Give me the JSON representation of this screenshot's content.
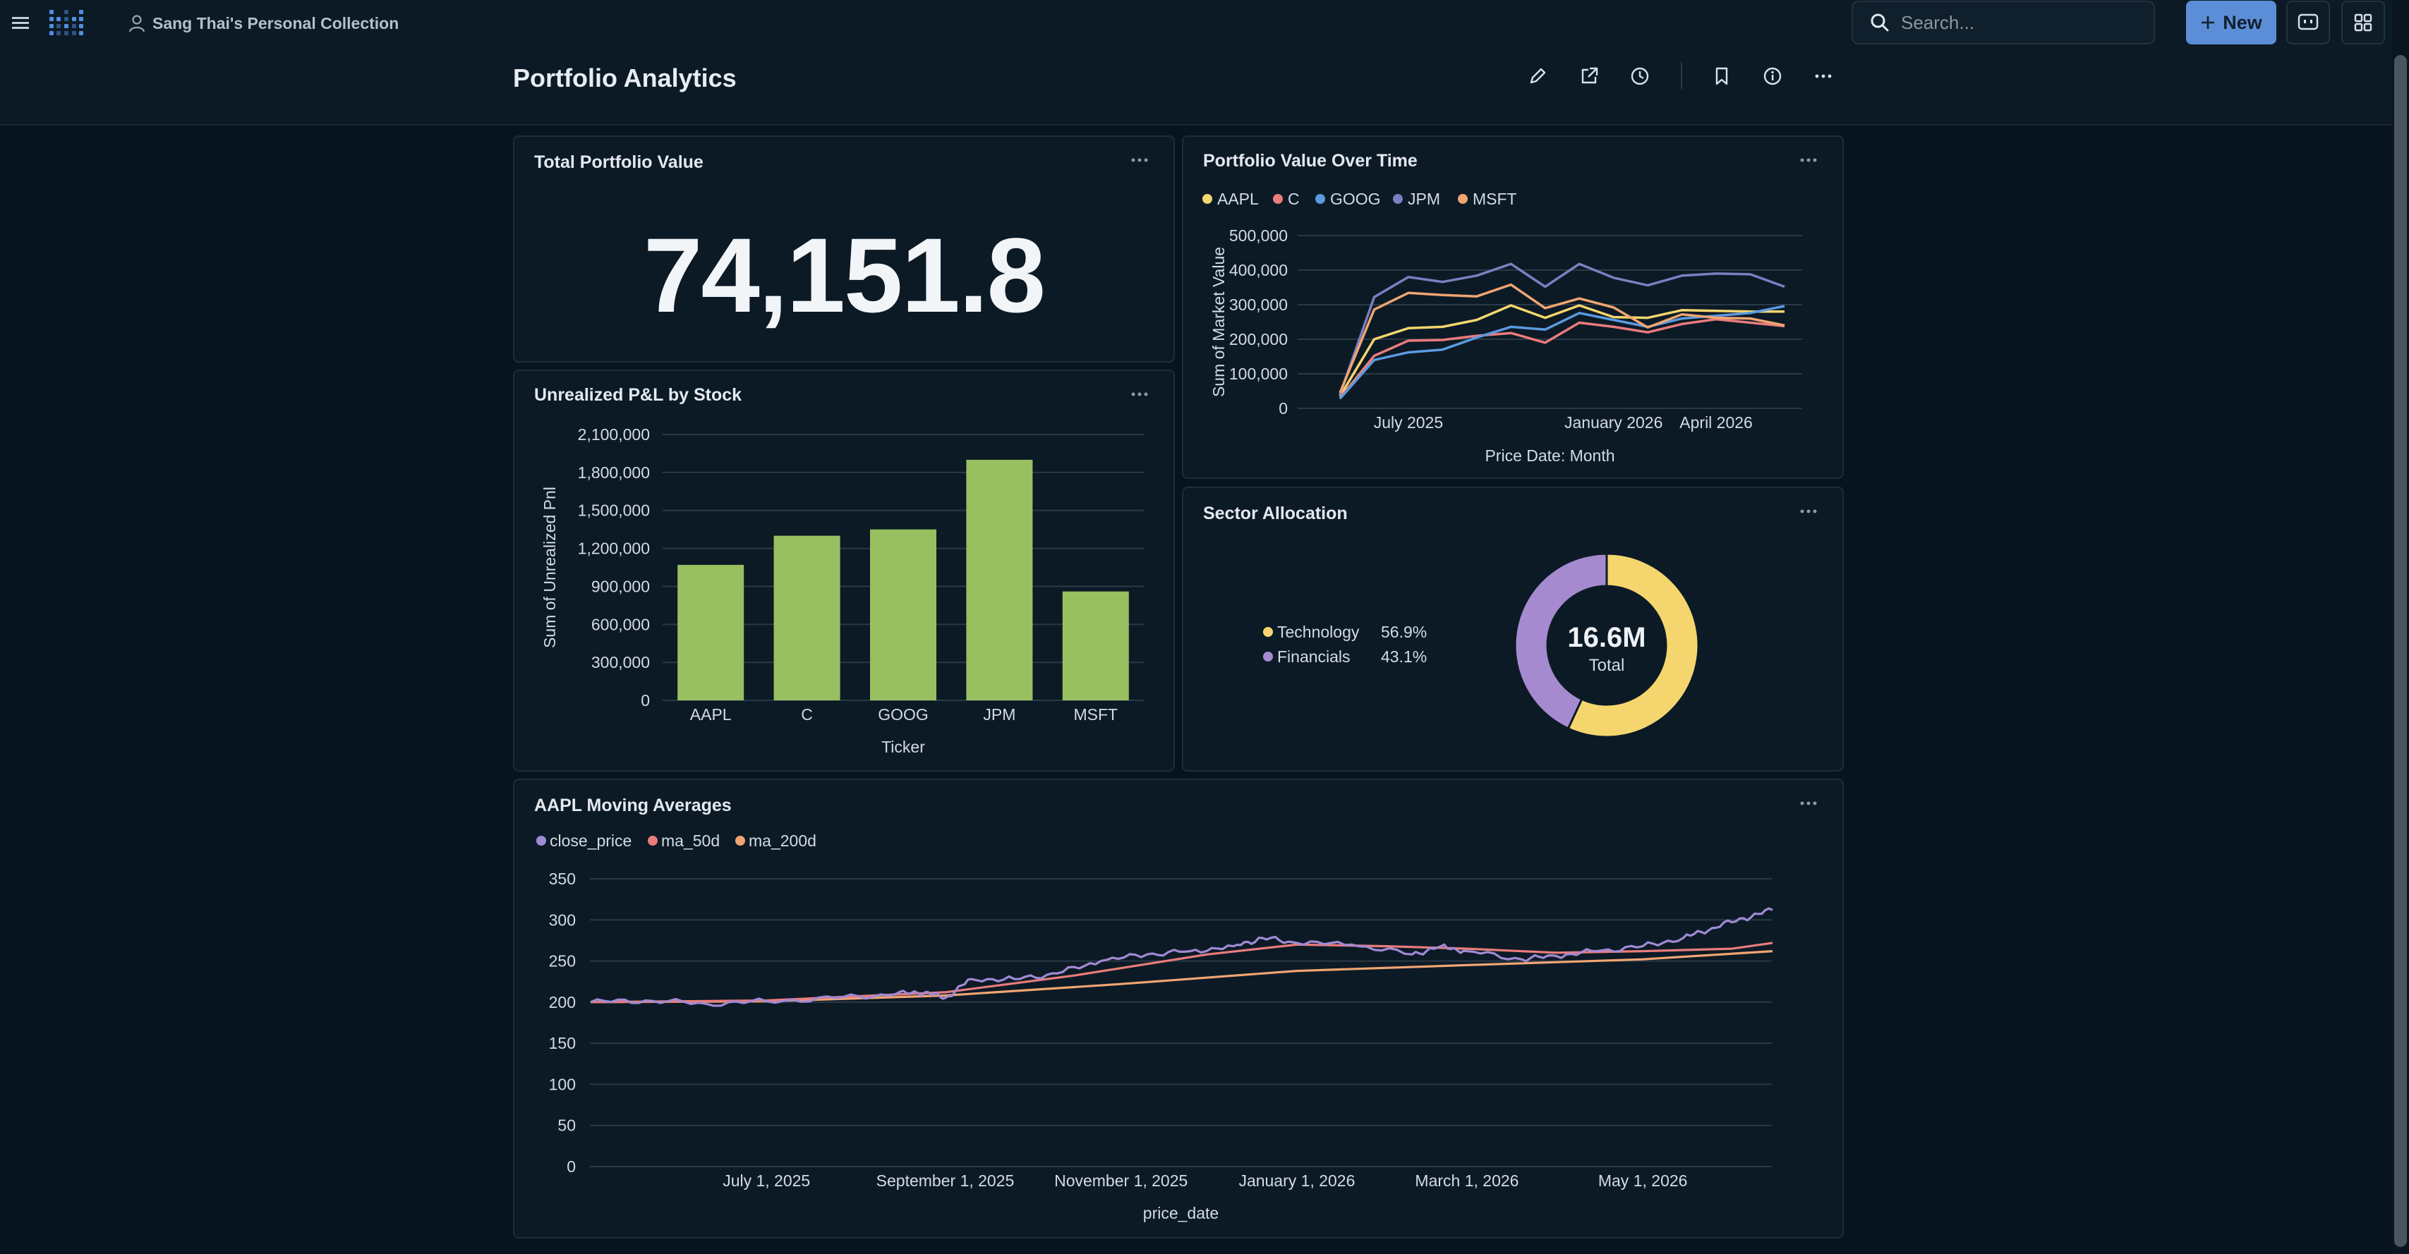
{
  "navbar": {
    "collection": "Sang Thai's Personal Collection",
    "search_placeholder": "Search...",
    "new_label": "New"
  },
  "dashboard": {
    "title": "Portfolio Analytics"
  },
  "colors": {
    "aapl": "#f5d66e",
    "c": "#ea7c7c",
    "goog": "#5b9ae0",
    "jpm": "#7b7fc1",
    "msft": "#f0a572",
    "bar": "#98c060",
    "technology": "#f5d66e",
    "financials": "#a68ad0",
    "close_price": "#a08ad4",
    "ma_50d": "#ea7c7c",
    "ma_200d": "#f0a572"
  },
  "cards": {
    "total": {
      "title": "Total Portfolio Value",
      "value": "74,151.8"
    },
    "pvot": {
      "title": "Portfolio Value Over Time"
    },
    "pnl": {
      "title": "Unrealized P&L by Stock"
    },
    "sector": {
      "title": "Sector Allocation"
    },
    "ma": {
      "title": "AAPL Moving Averages"
    }
  },
  "chart_data": [
    {
      "id": "pvot",
      "type": "line",
      "title": "Portfolio Value Over Time",
      "xlabel": "Price Date: Month",
      "ylabel": "Sum of Market Value",
      "ylim": [
        0,
        500000
      ],
      "yticks": [
        0,
        100000,
        200000,
        300000,
        400000,
        500000
      ],
      "ytick_labels": [
        "0",
        "100,000",
        "200,000",
        "300,000",
        "400,000",
        "500,000"
      ],
      "xtick_labels": [
        "July 2025",
        "January 2026",
        "April 2026"
      ],
      "xtick_index": [
        2,
        8,
        11
      ],
      "legend": "top-left",
      "x": [
        "2025-05",
        "2025-06",
        "2025-07",
        "2025-08",
        "2025-09",
        "2025-10",
        "2025-11",
        "2025-12",
        "2026-01",
        "2026-02",
        "2026-03",
        "2026-04",
        "2026-05",
        "2026-06"
      ],
      "series": [
        {
          "name": "AAPL",
          "values": [
            35000,
            200000,
            232000,
            236000,
            256000,
            298000,
            262000,
            298000,
            264000,
            262000,
            284000,
            282000,
            280000,
            280000
          ]
        },
        {
          "name": "C",
          "values": [
            30000,
            152000,
            196000,
            198000,
            210000,
            218000,
            190000,
            248000,
            236000,
            220000,
            244000,
            258000,
            248000,
            238000
          ]
        },
        {
          "name": "GOOG",
          "values": [
            28000,
            140000,
            162000,
            170000,
            205000,
            236000,
            228000,
            276000,
            256000,
            236000,
            260000,
            268000,
            276000,
            296000
          ]
        },
        {
          "name": "JPM",
          "values": [
            40000,
            322000,
            380000,
            366000,
            384000,
            418000,
            352000,
            418000,
            378000,
            356000,
            384000,
            390000,
            388000,
            352000
          ]
        },
        {
          "name": "MSFT",
          "values": [
            45000,
            286000,
            334000,
            328000,
            324000,
            358000,
            290000,
            318000,
            292000,
            234000,
            272000,
            262000,
            260000,
            240000
          ]
        }
      ]
    },
    {
      "id": "pnl",
      "type": "bar",
      "title": "Unrealized P&L by Stock",
      "xlabel": "Ticker",
      "ylabel": "Sum of Unrealized Pnl",
      "ylim": [
        0,
        2100000
      ],
      "yticks": [
        0,
        300000,
        600000,
        900000,
        1200000,
        1500000,
        1800000,
        2100000
      ],
      "ytick_labels": [
        "0",
        "300,000",
        "600,000",
        "900,000",
        "1,200,000",
        "1,500,000",
        "1,800,000",
        "2,100,000"
      ],
      "categories": [
        "AAPL",
        "C",
        "GOOG",
        "JPM",
        "MSFT"
      ],
      "values": [
        1070000,
        1300000,
        1350000,
        1900000,
        860000
      ]
    },
    {
      "id": "sector",
      "type": "pie",
      "title": "Sector Allocation",
      "center_value": "16.6M",
      "center_label": "Total",
      "legend": "left",
      "slices": [
        {
          "name": "Technology",
          "value": 56.9,
          "label": "56.9%"
        },
        {
          "name": "Financials",
          "value": 43.1,
          "label": "43.1%"
        }
      ]
    },
    {
      "id": "ma",
      "type": "line",
      "title": "AAPL Moving Averages",
      "xlabel": "price_date",
      "ylabel": "",
      "ylim": [
        0,
        350
      ],
      "yticks": [
        0,
        50,
        100,
        150,
        200,
        250,
        300,
        350
      ],
      "x_start": "2025-05-01",
      "x_end": "2026-06-15",
      "xtick_dates": [
        "2025-07-01",
        "2025-09-01",
        "2025-11-01",
        "2026-01-01",
        "2026-03-01",
        "2026-05-01"
      ],
      "xtick_labels": [
        "July 1, 2025",
        "September 1, 2025",
        "November 1, 2025",
        "January 1, 2026",
        "March 1, 2026",
        "May 1, 2026"
      ],
      "legend": "top-left",
      "series": [
        {
          "name": "close_price",
          "points": [
            [
              "2025-05-01",
              200
            ],
            [
              "2025-05-20",
              202
            ],
            [
              "2025-06-10",
              198
            ],
            [
              "2025-07-01",
              201
            ],
            [
              "2025-07-25",
              205
            ],
            [
              "2025-08-15",
              210
            ],
            [
              "2025-08-25",
              212
            ],
            [
              "2025-09-01",
              205
            ],
            [
              "2025-09-10",
              228
            ],
            [
              "2025-09-25",
              228
            ],
            [
              "2025-10-10",
              235
            ],
            [
              "2025-10-25",
              250
            ],
            [
              "2025-11-10",
              258
            ],
            [
              "2025-11-25",
              262
            ],
            [
              "2025-12-10",
              268
            ],
            [
              "2025-12-20",
              278
            ],
            [
              "2026-01-01",
              272
            ],
            [
              "2026-01-20",
              270
            ],
            [
              "2026-02-10",
              258
            ],
            [
              "2026-02-20",
              268
            ],
            [
              "2026-03-01",
              262
            ],
            [
              "2026-03-20",
              252
            ],
            [
              "2026-04-01",
              256
            ],
            [
              "2026-04-15",
              262
            ],
            [
              "2026-05-01",
              268
            ],
            [
              "2026-05-15",
              278
            ],
            [
              "2026-05-25",
              290
            ],
            [
              "2026-06-05",
              302
            ],
            [
              "2026-06-15",
              312
            ]
          ]
        },
        {
          "name": "ma_50d",
          "points": [
            [
              "2025-05-01",
              200
            ],
            [
              "2025-07-01",
              202
            ],
            [
              "2025-09-01",
              212
            ],
            [
              "2025-10-15",
              232
            ],
            [
              "2025-12-01",
              258
            ],
            [
              "2026-01-01",
              270
            ],
            [
              "2026-02-01",
              268
            ],
            [
              "2026-03-01",
              265
            ],
            [
              "2026-04-01",
              260
            ],
            [
              "2026-05-01",
              262
            ],
            [
              "2026-06-01",
              265
            ],
            [
              "2026-06-15",
              272
            ]
          ]
        },
        {
          "name": "ma_200d",
          "points": [
            [
              "2025-05-01",
              200
            ],
            [
              "2025-07-01",
              201
            ],
            [
              "2025-09-01",
              208
            ],
            [
              "2025-11-01",
              222
            ],
            [
              "2026-01-01",
              238
            ],
            [
              "2026-03-01",
              245
            ],
            [
              "2026-05-01",
              252
            ],
            [
              "2026-06-15",
              262
            ]
          ]
        }
      ]
    }
  ]
}
